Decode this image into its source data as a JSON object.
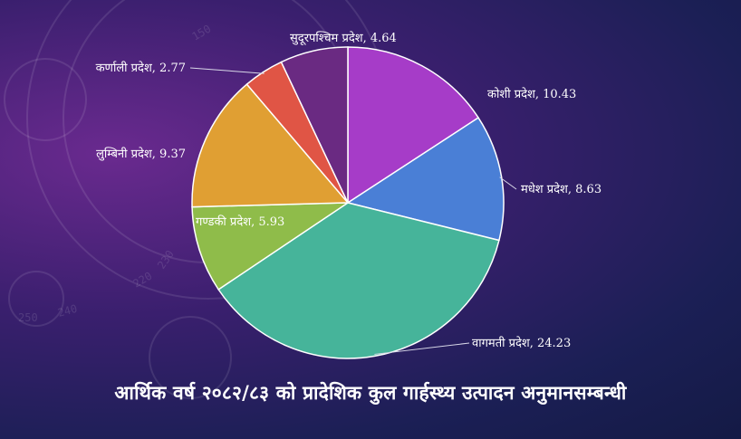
{
  "title": "आर्थिक वर्ष २०८२/८३ को  प्रादेशिक कुल गार्हस्थ्य उत्पादन अनुमानसम्बन्धी",
  "chart_data": {
    "type": "pie",
    "title": "आर्थिक वर्ष २०८२/८३ को  प्रादेशिक कुल गार्हस्थ्य उत्पादन अनुमानसम्बन्धी",
    "label_color": "#ffffff",
    "slices": [
      {
        "label": "कोशी प्रदेश, 10.43",
        "value": 10.43,
        "color": "#a63cc8"
      },
      {
        "label": "मधेश प्रदेश, 8.63",
        "value": 8.63,
        "color": "#4a7fd6"
      },
      {
        "label": "वागमती प्रदेश, 24.23",
        "value": 24.23,
        "color": "#46b49a"
      },
      {
        "label": "गण्डकी प्रदेश, 5.93",
        "value": 5.93,
        "color": "#8fbc4a"
      },
      {
        "label": "लुम्बिनी प्रदेश, 9.37",
        "value": 9.37,
        "color": "#e09f33"
      },
      {
        "label": "कर्णाली प्रदेश, 2.77",
        "value": 2.77,
        "color": "#e05545"
      },
      {
        "label": "सुदूरपश्चिम प्रदेश, 4.64",
        "value": 4.64,
        "color": "#6a2a82"
      }
    ]
  },
  "decor": {
    "dial_numbers": [
      "150",
      "230",
      "220",
      "240",
      "250"
    ]
  }
}
